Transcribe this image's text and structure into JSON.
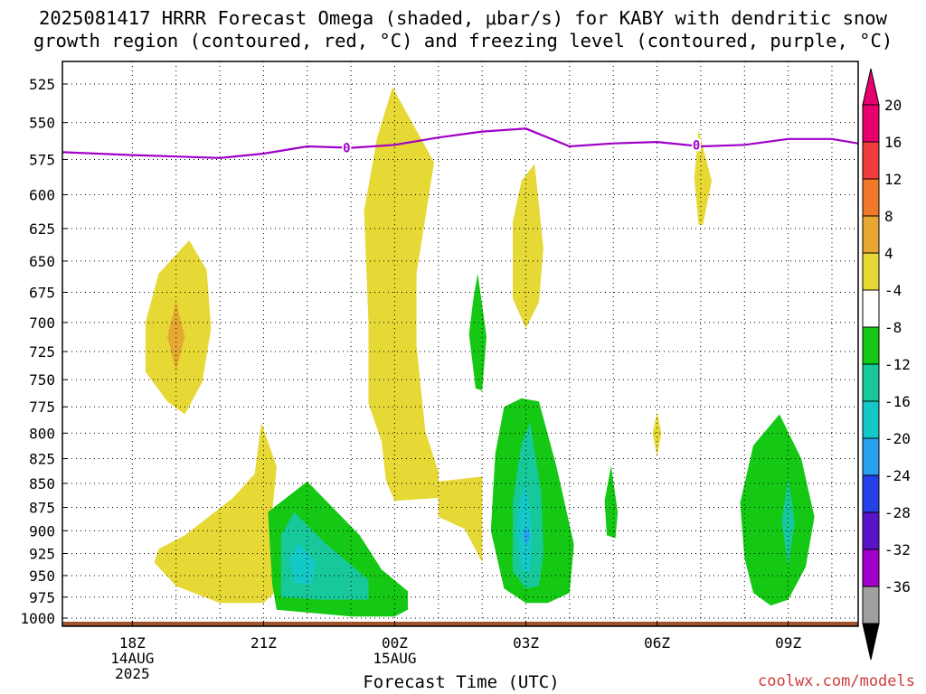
{
  "title": {
    "line1": "2025081417 HRRR Forecast Omega (shaded, μbar/s) for KABY with dendritic snow",
    "line2": "growth region (contoured, red, °C) and freezing level (contoured, purple, °C)"
  },
  "x_axis_title": "Forecast Time (UTC)",
  "credit": "coolwx.com/models",
  "colors": {
    "yellow": "#e6d835",
    "orange": "#e6a832",
    "green": "#14c814",
    "teal": "#17c89b",
    "cyan": "#15c8c8",
    "sky": "#2aa0f0",
    "freezing_line": "#a000c8",
    "ground": "#a0522d",
    "background": "#ffffff"
  },
  "chart_data": {
    "type": "heatmap",
    "title": "2025081417 HRRR Forecast Omega (shaded, μbar/s) for KABY with dendritic snow growth region (contoured, red, °C) and freezing level (contoured, purple, °C)",
    "xlabel": "Forecast Time (UTC)",
    "ylabel": "",
    "x_unit": "hours since 2025-08-14 18Z",
    "xlim": [
      -1.6,
      16.6
    ],
    "y_ticks": [
      525,
      550,
      575,
      600,
      625,
      650,
      675,
      700,
      725,
      750,
      775,
      800,
      825,
      850,
      875,
      900,
      925,
      950,
      975,
      1000
    ],
    "y_tick_labels": [
      "525",
      "550",
      "575",
      "600",
      "625",
      "650",
      "675",
      "700",
      "725",
      "750",
      "775",
      "800",
      "825",
      "850",
      "875",
      "900",
      "925",
      "950",
      "975",
      "1000"
    ],
    "x_ticks": [
      {
        "hour": 0,
        "lines": [
          "18Z",
          "14AUG",
          "2025"
        ]
      },
      {
        "hour": 3,
        "lines": [
          "21Z"
        ]
      },
      {
        "hour": 6,
        "lines": [
          "00Z",
          "15AUG"
        ]
      },
      {
        "hour": 9,
        "lines": [
          "03Z"
        ]
      },
      {
        "hour": 12,
        "lines": [
          "06Z"
        ]
      },
      {
        "hour": 15,
        "lines": [
          "09Z"
        ]
      }
    ],
    "colorbar": {
      "labels": [
        "20",
        "16",
        "12",
        "8",
        "4",
        "-4",
        "-8",
        "-12",
        "-16",
        "-20",
        "-24",
        "-28",
        "-32",
        "-36"
      ],
      "bins": [
        "#e8006e",
        "#f03c3c",
        "#f07828",
        "#e6a832",
        "#e6d835",
        "#ffffff",
        "#14c814",
        "#17c89b",
        "#15c8c8",
        "#2aa0f0",
        "#2341e6",
        "#5a14c8",
        "#a000c8",
        "#a0a0a0"
      ],
      "top_arrow": "#e8006e",
      "bottom_arrow": "#000000"
    },
    "freezing_level": {
      "label": "0",
      "color": "#a000c8",
      "x": [
        -1.6,
        0,
        1,
        2,
        3,
        4,
        5,
        6,
        7,
        8,
        9,
        10,
        11,
        12,
        13,
        14,
        15,
        16,
        16.6
      ],
      "y": [
        570,
        572,
        573,
        574,
        571,
        566,
        567,
        565,
        560,
        556,
        554,
        566,
        564,
        563,
        566,
        565,
        561,
        561,
        564
      ],
      "label_positions": [
        [
          4.9,
          567
        ],
        [
          12.9,
          565
        ]
      ]
    },
    "omega_regions": [
      {
        "name": "yellow-1",
        "level": "4 to 8",
        "color": "#e6d835",
        "points": [
          [
            1.3,
            634
          ],
          [
            1.7,
            657
          ],
          [
            1.8,
            705
          ],
          [
            1.6,
            752
          ],
          [
            1.2,
            782
          ],
          [
            0.8,
            770
          ],
          [
            0.3,
            743
          ],
          [
            0.3,
            700
          ],
          [
            0.6,
            660
          ]
        ]
      },
      {
        "name": "orange-1",
        "level": "8 to 12",
        "color": "#e6a832",
        "points": [
          [
            1.0,
            683
          ],
          [
            1.2,
            712
          ],
          [
            1.0,
            742
          ],
          [
            0.8,
            712
          ]
        ]
      },
      {
        "name": "yellow-2",
        "level": "4 to 8",
        "color": "#e6d835",
        "points": [
          [
            2.95,
            790
          ],
          [
            3.3,
            833
          ],
          [
            3.2,
            880
          ],
          [
            3.45,
            915
          ],
          [
            3.45,
            960
          ],
          [
            3.0,
            982
          ],
          [
            2.0,
            982
          ],
          [
            1.0,
            962
          ],
          [
            0.5,
            935
          ],
          [
            0.6,
            920
          ],
          [
            1.2,
            905
          ],
          [
            1.8,
            883
          ],
          [
            2.3,
            865
          ],
          [
            2.8,
            840
          ]
        ]
      },
      {
        "name": "yellow-3",
        "level": "4 to 8",
        "color": "#e6d835",
        "points": [
          [
            5.95,
            527
          ],
          [
            6.9,
            577
          ],
          [
            6.5,
            660
          ],
          [
            6.5,
            720
          ],
          [
            6.7,
            798
          ],
          [
            7.0,
            838
          ],
          [
            7.0,
            865
          ],
          [
            6.0,
            868
          ],
          [
            5.8,
            847
          ],
          [
            5.7,
            808
          ],
          [
            5.4,
            772
          ],
          [
            5.4,
            700
          ],
          [
            5.3,
            612
          ],
          [
            5.6,
            560
          ]
        ]
      },
      {
        "name": "yellow-4",
        "level": "4 to 8",
        "color": "#e6d835",
        "points": [
          [
            7.0,
            848
          ],
          [
            8.0,
            843
          ],
          [
            8.0,
            935
          ],
          [
            7.6,
            898
          ],
          [
            7.0,
            885
          ]
        ]
      },
      {
        "name": "green-1",
        "level": "-4 to -8",
        "color": "#14c814",
        "points": [
          [
            7.9,
            660
          ],
          [
            8.1,
            712
          ],
          [
            8.0,
            760
          ],
          [
            7.85,
            758
          ],
          [
            7.7,
            710
          ],
          [
            7.8,
            680
          ]
        ]
      },
      {
        "name": "yellow-5",
        "level": "4 to 8",
        "color": "#e6d835",
        "points": [
          [
            9.2,
            578
          ],
          [
            9.4,
            640
          ],
          [
            9.3,
            683
          ],
          [
            9.0,
            705
          ],
          [
            8.7,
            680
          ],
          [
            8.7,
            620
          ],
          [
            8.9,
            590
          ]
        ]
      },
      {
        "name": "green-2",
        "level": "-4 to -8",
        "color": "#14c814",
        "points": [
          [
            4.0,
            848
          ],
          [
            5.2,
            905
          ],
          [
            5.7,
            943
          ],
          [
            6.3,
            968
          ],
          [
            6.3,
            990
          ],
          [
            6.0,
            998
          ],
          [
            5.0,
            998
          ],
          [
            3.3,
            990
          ],
          [
            3.2,
            960
          ],
          [
            3.1,
            880
          ]
        ]
      },
      {
        "name": "teal-1",
        "level": "-8 to -12",
        "color": "#17c89b",
        "points": [
          [
            3.7,
            880
          ],
          [
            4.4,
            913
          ],
          [
            5.4,
            955
          ],
          [
            5.4,
            978
          ],
          [
            4.3,
            978
          ],
          [
            3.4,
            975
          ],
          [
            3.4,
            905
          ]
        ]
      },
      {
        "name": "cyan-1",
        "level": "-12 to -16",
        "color": "#15c8c8",
        "points": [
          [
            3.8,
            913
          ],
          [
            4.2,
            935
          ],
          [
            4.1,
            960
          ],
          [
            3.7,
            958
          ],
          [
            3.6,
            930
          ]
        ]
      },
      {
        "name": "green-3",
        "level": "-4 to -8",
        "color": "#14c814",
        "points": [
          [
            8.9,
            767
          ],
          [
            9.3,
            770
          ],
          [
            9.7,
            833
          ],
          [
            10.1,
            915
          ],
          [
            10.0,
            970
          ],
          [
            9.5,
            982
          ],
          [
            9.0,
            982
          ],
          [
            8.5,
            965
          ],
          [
            8.2,
            900
          ],
          [
            8.3,
            820
          ],
          [
            8.5,
            775
          ]
        ]
      },
      {
        "name": "teal-2",
        "level": "-8 to -12",
        "color": "#17c89b",
        "points": [
          [
            9.1,
            790
          ],
          [
            9.35,
            860
          ],
          [
            9.4,
            925
          ],
          [
            9.3,
            962
          ],
          [
            9.0,
            965
          ],
          [
            8.7,
            945
          ],
          [
            8.7,
            870
          ],
          [
            8.9,
            810
          ]
        ]
      },
      {
        "name": "cyan-2",
        "level": "-12 to -16",
        "color": "#15c8c8",
        "points": [
          [
            9.0,
            850
          ],
          [
            9.15,
            900
          ],
          [
            9.1,
            945
          ],
          [
            8.9,
            945
          ],
          [
            8.8,
            900
          ],
          [
            8.85,
            870
          ]
        ]
      },
      {
        "name": "sky-1",
        "level": "-16 to -20",
        "color": "#2aa0f0",
        "points": [
          [
            9.0,
            895
          ],
          [
            9.1,
            905
          ],
          [
            9.0,
            917
          ],
          [
            8.95,
            905
          ]
        ]
      },
      {
        "name": "green-4",
        "level": "-4 to -8",
        "color": "#14c814",
        "points": [
          [
            14.8,
            782
          ],
          [
            15.3,
            825
          ],
          [
            15.6,
            885
          ],
          [
            15.4,
            940
          ],
          [
            15.0,
            978
          ],
          [
            14.6,
            985
          ],
          [
            14.2,
            970
          ],
          [
            14.0,
            930
          ],
          [
            13.9,
            870
          ],
          [
            14.2,
            812
          ]
        ]
      },
      {
        "name": "teal-3",
        "level": "-8 to -12",
        "color": "#17c89b",
        "points": [
          [
            15.0,
            845
          ],
          [
            15.15,
            890
          ],
          [
            15.0,
            940
          ],
          [
            14.85,
            890
          ]
        ]
      },
      {
        "name": "green-5",
        "level": "-4 to -8",
        "color": "#14c814",
        "points": [
          [
            10.95,
            832
          ],
          [
            11.1,
            880
          ],
          [
            11.05,
            908
          ],
          [
            10.85,
            905
          ],
          [
            10.8,
            868
          ]
        ]
      },
      {
        "name": "yellow-6",
        "level": "4 to 8",
        "color": "#e6d835",
        "points": [
          [
            12.95,
            555
          ],
          [
            13.25,
            590
          ],
          [
            13.05,
            622
          ],
          [
            12.95,
            622
          ],
          [
            12.85,
            588
          ]
        ]
      },
      {
        "name": "yellow-7",
        "level": "4 to 8",
        "color": "#e6d835",
        "points": [
          [
            12.0,
            780
          ],
          [
            12.1,
            800
          ],
          [
            12.0,
            823
          ],
          [
            11.9,
            800
          ]
        ]
      }
    ]
  }
}
